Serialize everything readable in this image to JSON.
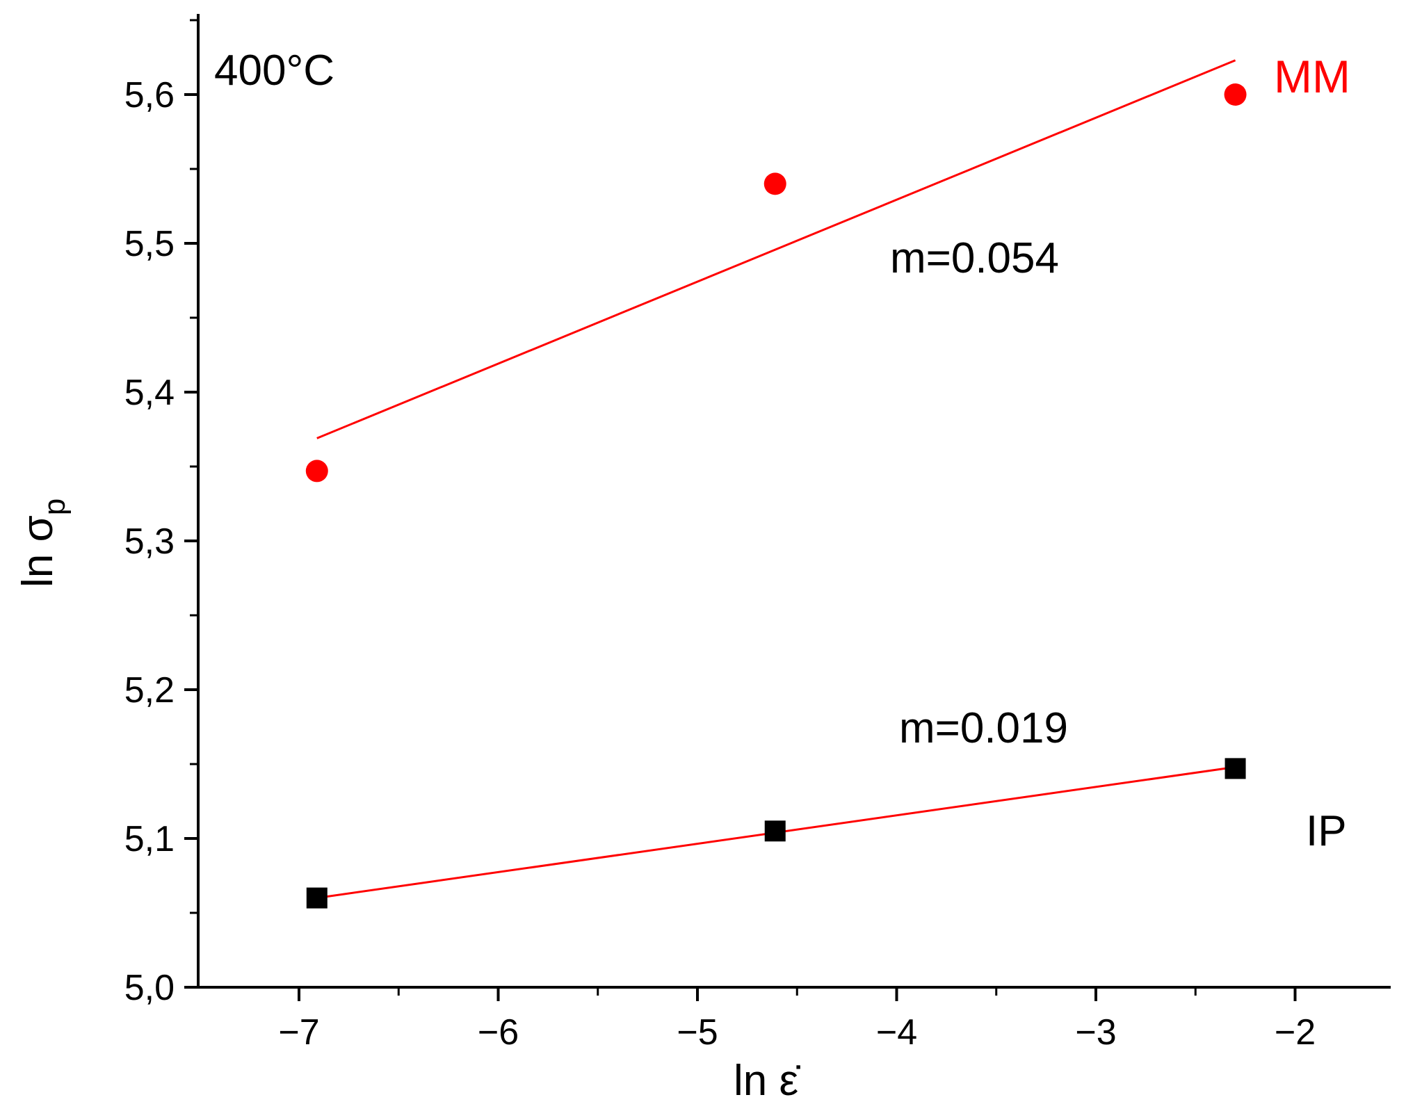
{
  "chart_data": {
    "type": "scatter",
    "annotation_temperature": "400°C",
    "xlabel": "ln ε̇",
    "ylabel": "ln σ",
    "ylabel_subscript": "p",
    "xlim": [
      -7.5,
      -1.5
    ],
    "ylim": [
      5.0,
      5.65
    ],
    "x_ticks": [
      -7,
      -6,
      -5,
      -4,
      -3,
      -2
    ],
    "x_tick_labels": [
      "−7",
      "−6",
      "−5",
      "−4",
      "−3",
      "−2"
    ],
    "y_ticks": [
      5.0,
      5.1,
      5.2,
      5.3,
      5.4,
      5.5,
      5.6
    ],
    "y_tick_labels": [
      "5,0",
      "5,1",
      "5,2",
      "5,3",
      "5,4",
      "5,5",
      "5,6"
    ],
    "series": [
      {
        "name": "MM",
        "marker": "circle",
        "color": "#ff0000",
        "x": [
          -6.91,
          -4.61,
          -2.3
        ],
        "y": [
          5.347,
          5.54,
          5.6
        ],
        "fit": {
          "x": [
            -6.91,
            -2.3
          ],
          "y": [
            5.369,
            5.623
          ],
          "color": "#ff0000"
        },
        "slope_label": "m=0.054",
        "slope_label_pos": {
          "x": -4.3,
          "y": 5.49
        }
      },
      {
        "name": "IP",
        "marker": "square",
        "color": "#000000",
        "x": [
          -6.91,
          -4.61,
          -2.3
        ],
        "y": [
          5.06,
          5.105,
          5.147
        ],
        "fit": {
          "x": [
            -6.91,
            -2.3
          ],
          "y": [
            5.06,
            5.148
          ],
          "color": "#ff0000"
        },
        "slope_label": "m=0.019",
        "slope_label_pos": {
          "x": -4.25,
          "y": 5.172
        }
      }
    ],
    "legend": [
      {
        "label": "MM",
        "color": "#ff0000",
        "placement": "top-right"
      },
      {
        "label": "IP",
        "color": "#000000",
        "placement": "right"
      }
    ]
  }
}
